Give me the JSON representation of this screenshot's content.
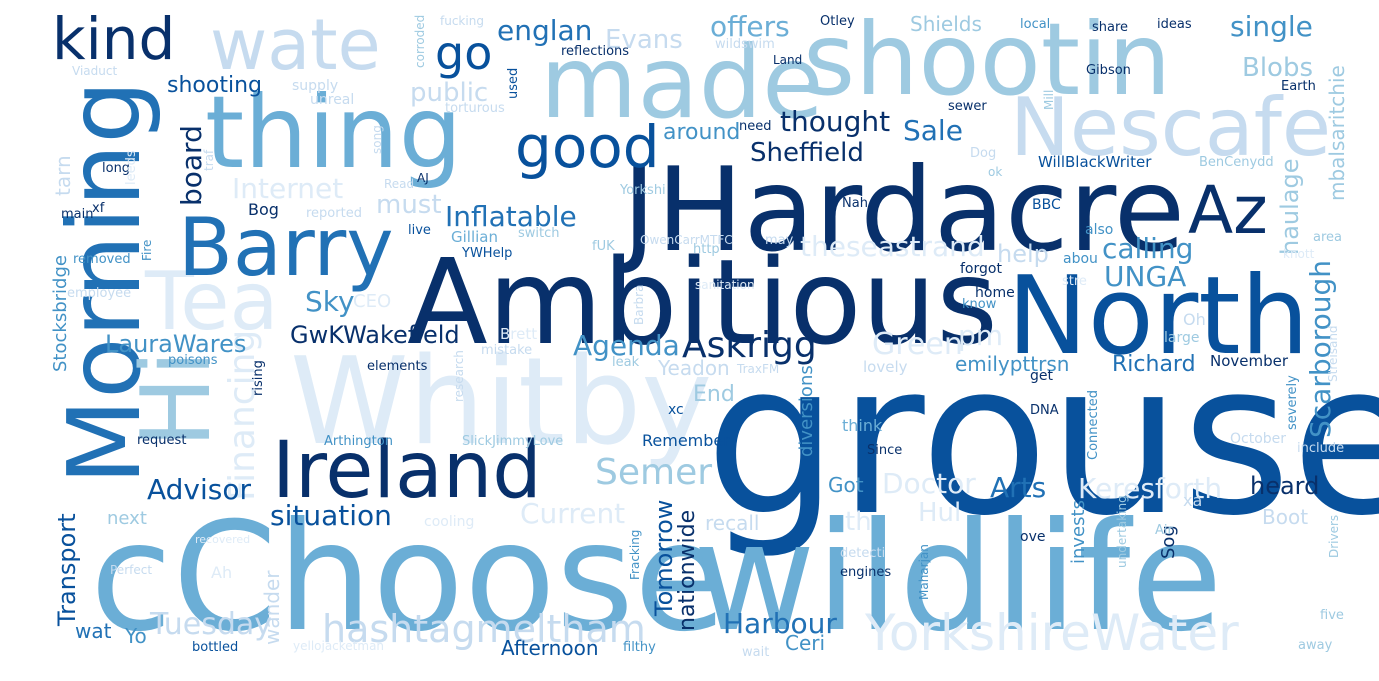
{
  "palette": {
    "c1": "#08306b",
    "c2": "#08519c",
    "c3": "#2171b5",
    "c4": "#4292c6",
    "c5": "#6baed6",
    "c6": "#9ecae1",
    "c7": "#c6dbef",
    "c8": "#deebf7"
  },
  "words": [
    {
      "text": "grouse",
      "size": 210,
      "color": "c2",
      "rot": 0
    },
    {
      "text": "cChoose",
      "size": 150,
      "color": "c5",
      "rot": 0
    },
    {
      "text": "wildlife",
      "size": 150,
      "color": "c5",
      "rot": 0
    },
    {
      "text": "Ambitious",
      "size": 118,
      "color": "c1",
      "rot": 0
    },
    {
      "text": "JHardacre",
      "size": 116,
      "color": "c1",
      "rot": 0
    },
    {
      "text": "Whitby",
      "size": 120,
      "color": "c8",
      "rot": 0
    },
    {
      "text": "North",
      "size": 108,
      "color": "c2",
      "rot": 0
    },
    {
      "text": "shootin",
      "size": 100,
      "color": "c6",
      "rot": 0
    },
    {
      "text": "made",
      "size": 100,
      "color": "c6",
      "rot": 0
    },
    {
      "text": "thing",
      "size": 100,
      "color": "c5",
      "rot": 0
    },
    {
      "text": "Morning",
      "size": 100,
      "color": "c3",
      "rot": -90
    },
    {
      "text": "Nescafe",
      "size": 80,
      "color": "c7",
      "rot": 0
    },
    {
      "text": "Hi",
      "size": 95,
      "color": "c6",
      "rot": -90
    },
    {
      "text": "Tea",
      "size": 80,
      "color": "c8",
      "rot": 0
    },
    {
      "text": "Barry",
      "size": 80,
      "color": "c3",
      "rot": 0
    },
    {
      "text": "Ireland",
      "size": 78,
      "color": "c1",
      "rot": 0
    },
    {
      "text": "wate",
      "size": 70,
      "color": "c7",
      "rot": 0
    },
    {
      "text": "Az",
      "size": 66,
      "color": "c1",
      "rot": 0
    },
    {
      "text": "good",
      "size": 58,
      "color": "c2",
      "rot": 0
    },
    {
      "text": "kind",
      "size": 58,
      "color": "c1",
      "rot": 0
    },
    {
      "text": "YorkshireWater",
      "size": 50,
      "color": "c8",
      "rot": 0
    },
    {
      "text": "go",
      "size": 46,
      "color": "c2",
      "rot": 0
    },
    {
      "text": "hashtagmeltham",
      "size": 38,
      "color": "c7",
      "rot": 0
    },
    {
      "text": "Askrigg",
      "size": 36,
      "color": "c1",
      "rot": 0
    },
    {
      "text": "Semer",
      "size": 36,
      "color": "c6",
      "rot": 0
    },
    {
      "text": "Financing",
      "size": 36,
      "color": "c8",
      "rot": -90
    },
    {
      "text": "Scarborough",
      "size": 28,
      "color": "c4",
      "rot": -90
    },
    {
      "text": "Green",
      "size": 30,
      "color": "c8",
      "rot": 0
    },
    {
      "text": "theseastrand",
      "size": 28,
      "color": "c8",
      "rot": 0
    },
    {
      "text": "Tuesday",
      "size": 30,
      "color": "c7",
      "rot": 0
    },
    {
      "text": "Sale",
      "size": 28,
      "color": "c3",
      "rot": 0
    },
    {
      "text": "Agenda",
      "size": 28,
      "color": "c4",
      "rot": 0
    },
    {
      "text": "Internet",
      "size": 28,
      "color": "c8",
      "rot": 0
    },
    {
      "text": "Harbour",
      "size": 28,
      "color": "c3",
      "rot": 0
    },
    {
      "text": "calling",
      "size": 28,
      "color": "c4",
      "rot": 0
    },
    {
      "text": "Current",
      "size": 28,
      "color": "c8",
      "rot": 0
    },
    {
      "text": "Doctor",
      "size": 28,
      "color": "c8",
      "rot": 0
    },
    {
      "text": "Keresforth",
      "size": 28,
      "color": "c8",
      "rot": 0
    },
    {
      "text": "englan",
      "size": 28,
      "color": "c3",
      "rot": 0
    },
    {
      "text": "Evans",
      "size": 26,
      "color": "c7",
      "rot": 0
    },
    {
      "text": "Blobs",
      "size": 26,
      "color": "c6",
      "rot": 0
    },
    {
      "text": "public",
      "size": 26,
      "color": "c7",
      "rot": 0
    },
    {
      "text": "Inflatable",
      "size": 28,
      "color": "c3",
      "rot": 0
    },
    {
      "text": "situation",
      "size": 28,
      "color": "c2",
      "rot": 0
    },
    {
      "text": "Advisor",
      "size": 28,
      "color": "c2",
      "rot": 0
    },
    {
      "text": "Arts",
      "size": 28,
      "color": "c3",
      "rot": 0
    },
    {
      "text": "thought",
      "size": 28,
      "color": "c1",
      "rot": 0
    },
    {
      "text": "offers",
      "size": 28,
      "color": "c5",
      "rot": 0
    },
    {
      "text": "single",
      "size": 28,
      "color": "c4",
      "rot": 0
    },
    {
      "text": "Sheffield",
      "size": 26,
      "color": "c1",
      "rot": 0
    },
    {
      "text": "board",
      "size": 28,
      "color": "c1",
      "rot": -90
    },
    {
      "text": "Sky",
      "size": 28,
      "color": "c4",
      "rot": 0
    },
    {
      "text": "pm",
      "size": 28,
      "color": "c8",
      "rot": 0
    },
    {
      "text": "UNGA",
      "size": 28,
      "color": "c4",
      "rot": 0
    },
    {
      "text": "heard",
      "size": 24,
      "color": "c1",
      "rot": 0
    },
    {
      "text": "must",
      "size": 26,
      "color": "c7",
      "rot": 0
    },
    {
      "text": "Hul",
      "size": 26,
      "color": "c8",
      "rot": 0
    },
    {
      "text": "Tomorrow",
      "size": 24,
      "color": "c2",
      "rot": -90
    },
    {
      "text": "haulage",
      "size": 24,
      "color": "c6",
      "rot": -90
    },
    {
      "text": "around",
      "size": 22,
      "color": "c4",
      "rot": 0
    },
    {
      "text": "GwKWakefield",
      "size": 24,
      "color": "c1",
      "rot": 0
    },
    {
      "text": "LauraWares",
      "size": 24,
      "color": "c4",
      "rot": 0
    },
    {
      "text": "Richard",
      "size": 22,
      "color": "c3",
      "rot": 0
    },
    {
      "text": "shooting",
      "size": 22,
      "color": "c2",
      "rot": 0
    },
    {
      "text": "help",
      "size": 24,
      "color": "c7",
      "rot": 0
    },
    {
      "text": "th",
      "size": 26,
      "color": "c8",
      "rot": 0
    },
    {
      "text": "Transport",
      "size": 24,
      "color": "c2",
      "rot": -90
    },
    {
      "text": "nationwide",
      "size": 22,
      "color": "c1",
      "rot": -90
    },
    {
      "text": "Yeadon",
      "size": 20,
      "color": "c7",
      "rot": 0
    },
    {
      "text": "mbalsaritchie",
      "size": 20,
      "color": "c6",
      "rot": -90
    },
    {
      "text": "emilypttrsn",
      "size": 20,
      "color": "c4",
      "rot": 0
    },
    {
      "text": "End",
      "size": 22,
      "color": "c6",
      "rot": 0
    },
    {
      "text": "Got",
      "size": 20,
      "color": "c4",
      "rot": 0
    },
    {
      "text": "Boot",
      "size": 20,
      "color": "c7",
      "rot": 0
    },
    {
      "text": "Shields",
      "size": 20,
      "color": "c6",
      "rot": 0
    },
    {
      "text": "Afternoon",
      "size": 20,
      "color": "c2",
      "rot": 0
    },
    {
      "text": "Ceri",
      "size": 20,
      "color": "c4",
      "rot": 0
    },
    {
      "text": "recall",
      "size": 20,
      "color": "c7",
      "rot": 0
    },
    {
      "text": "Yo",
      "size": 20,
      "color": "c4",
      "rot": 0
    },
    {
      "text": "wat",
      "size": 20,
      "color": "c3",
      "rot": 0
    },
    {
      "text": "next",
      "size": 18,
      "color": "c6",
      "rot": 0
    },
    {
      "text": "wander",
      "size": 20,
      "color": "c7",
      "rot": -90
    },
    {
      "text": "CEO",
      "size": 18,
      "color": "c8",
      "rot": 0
    },
    {
      "text": "diversions",
      "size": 18,
      "color": "c4",
      "rot": -90
    },
    {
      "text": "Stocksbridge",
      "size": 18,
      "color": "c4",
      "rot": -90
    },
    {
      "text": "tarn",
      "size": 20,
      "color": "c7",
      "rot": -90
    },
    {
      "text": "Sog",
      "size": 18,
      "color": "c1",
      "rot": -90
    },
    {
      "text": "invests",
      "size": 18,
      "color": "c4",
      "rot": -90
    },
    {
      "text": "Bog",
      "size": 16,
      "color": "c1",
      "rot": 0
    },
    {
      "text": "think",
      "size": 16,
      "color": "c5",
      "rot": 0
    },
    {
      "text": "Remember",
      "size": 16,
      "color": "c2",
      "rot": 0
    },
    {
      "text": "November",
      "size": 15,
      "color": "c1",
      "rot": 0
    },
    {
      "text": "WillBlackWriter",
      "size": 15,
      "color": "c2",
      "rot": 0
    },
    {
      "text": "Gillian",
      "size": 15,
      "color": "c5",
      "rot": 0
    },
    {
      "text": "Ah",
      "size": 16,
      "color": "c8",
      "rot": 0
    },
    {
      "text": "xc",
      "size": 14,
      "color": "c2",
      "rot": 0
    },
    {
      "text": "Oh",
      "size": 16,
      "color": "c7",
      "rot": 0
    },
    {
      "text": "ove",
      "size": 14,
      "color": "c1",
      "rot": 0
    },
    {
      "text": "lovely",
      "size": 15,
      "color": "c7",
      "rot": 0
    },
    {
      "text": "get",
      "size": 14,
      "color": "c1",
      "rot": 0
    },
    {
      "text": "xa",
      "size": 16,
      "color": "c7",
      "rot": 0
    },
    {
      "text": "Since",
      "size": 13,
      "color": "c1",
      "rot": 0
    },
    {
      "text": "mistake",
      "size": 13,
      "color": "c7",
      "rot": 0
    },
    {
      "text": "elements",
      "size": 13,
      "color": "c1",
      "rot": 0
    },
    {
      "text": "Arthington",
      "size": 13,
      "color": "c4",
      "rot": 0
    },
    {
      "text": "SlickJimmyLove",
      "size": 13,
      "color": "c6",
      "rot": 0
    },
    {
      "text": "poisons",
      "size": 13,
      "color": "c4",
      "rot": 0
    },
    {
      "text": "request",
      "size": 13,
      "color": "c1",
      "rot": 0
    },
    {
      "text": "rising",
      "size": 13,
      "color": "c1",
      "rot": -90
    },
    {
      "text": "research",
      "size": 12,
      "color": "c7",
      "rot": -90
    },
    {
      "text": "Brett",
      "size": 15,
      "color": "c8",
      "rot": 0
    },
    {
      "text": "leak",
      "size": 13,
      "color": "c6",
      "rot": 0
    },
    {
      "text": "TraxFM",
      "size": 12,
      "color": "c7",
      "rot": 0
    },
    {
      "text": "Connected",
      "size": 13,
      "color": "c4",
      "rot": -90
    },
    {
      "text": "severely",
      "size": 13,
      "color": "c4",
      "rot": -90
    },
    {
      "text": "Streisand",
      "size": 12,
      "color": "c7",
      "rot": -90
    },
    {
      "text": "include",
      "size": 13,
      "color": "c7",
      "rot": 0
    },
    {
      "text": "October",
      "size": 14,
      "color": "c7",
      "rot": 0
    },
    {
      "text": "DNA",
      "size": 13,
      "color": "c1",
      "rot": 0
    },
    {
      "text": "large",
      "size": 14,
      "color": "c6",
      "rot": 0
    },
    {
      "text": "home",
      "size": 14,
      "color": "c1",
      "rot": 0
    },
    {
      "text": "know",
      "size": 13,
      "color": "c4",
      "rot": 0
    },
    {
      "text": "forgot",
      "size": 14,
      "color": "c1",
      "rot": 0
    },
    {
      "text": "abou",
      "size": 14,
      "color": "c4",
      "rot": 0
    },
    {
      "text": "stre",
      "size": 13,
      "color": "c8",
      "rot": 0
    },
    {
      "text": "area",
      "size": 13,
      "color": "c6",
      "rot": 0
    },
    {
      "text": "knott",
      "size": 12,
      "color": "c8",
      "rot": 0
    },
    {
      "text": "also",
      "size": 14,
      "color": "c4",
      "rot": 0
    },
    {
      "text": "BBC",
      "size": 14,
      "color": "c2",
      "rot": 0
    },
    {
      "text": "Nah",
      "size": 13,
      "color": "c1",
      "rot": 0
    },
    {
      "text": "may",
      "size": 13,
      "color": "c7",
      "rot": 0
    },
    {
      "text": "http",
      "size": 13,
      "color": "c6",
      "rot": 0
    },
    {
      "text": "fUK",
      "size": 13,
      "color": "c6",
      "rot": 0
    },
    {
      "text": "YWHelp",
      "size": 13,
      "color": "c2",
      "rot": 0
    },
    {
      "text": "switch",
      "size": 13,
      "color": "c6",
      "rot": 0
    },
    {
      "text": "OwenCarrMTFC",
      "size": 12,
      "color": "c7",
      "rot": 0
    },
    {
      "text": "Barbra",
      "size": 12,
      "color": "c7",
      "rot": -90
    },
    {
      "text": "sanitation",
      "size": 12,
      "color": "c8",
      "rot": 0
    },
    {
      "text": "Yorkshi",
      "size": 13,
      "color": "c6",
      "rot": 0
    },
    {
      "text": "live",
      "size": 13,
      "color": "c2",
      "rot": 0
    },
    {
      "text": "reported",
      "size": 13,
      "color": "c7",
      "rot": 0
    },
    {
      "text": "main",
      "size": 13,
      "color": "c1",
      "rot": 0
    },
    {
      "text": "xf",
      "size": 13,
      "color": "c1",
      "rot": 0
    },
    {
      "text": "removed",
      "size": 13,
      "color": "c4",
      "rot": 0
    },
    {
      "text": "employee",
      "size": 13,
      "color": "c7",
      "rot": 0
    },
    {
      "text": "Fire",
      "size": 12,
      "color": "c4",
      "rot": -90
    },
    {
      "text": "long",
      "size": 13,
      "color": "c1",
      "rot": 0
    },
    {
      "text": "leeds",
      "size": 13,
      "color": "c8",
      "rot": -90
    },
    {
      "text": "traf",
      "size": 12,
      "color": "c7",
      "rot": -90
    },
    {
      "text": "AJ",
      "size": 12,
      "color": "c1",
      "rot": 0
    },
    {
      "text": "Read",
      "size": 12,
      "color": "c7",
      "rot": 0
    },
    {
      "text": "song",
      "size": 12,
      "color": "c7",
      "rot": -90
    },
    {
      "text": "unreal",
      "size": 14,
      "color": "c7",
      "rot": 0
    },
    {
      "text": "supply",
      "size": 14,
      "color": "c7",
      "rot": 0
    },
    {
      "text": "torturous",
      "size": 13,
      "color": "c7",
      "rot": 0
    },
    {
      "text": "used",
      "size": 13,
      "color": "c2",
      "rot": -90
    },
    {
      "text": "corroded",
      "size": 12,
      "color": "c6",
      "rot": -90
    },
    {
      "text": "fucking",
      "size": 12,
      "color": "c7",
      "rot": 0
    },
    {
      "text": "reflections",
      "size": 13,
      "color": "c1",
      "rot": 0
    },
    {
      "text": "Viaduct",
      "size": 12,
      "color": "c7",
      "rot": 0
    },
    {
      "text": "wildswim",
      "size": 13,
      "color": "c7",
      "rot": 0
    },
    {
      "text": "Land",
      "size": 12,
      "color": "c1",
      "rot": 0
    },
    {
      "text": "Otley",
      "size": 13,
      "color": "c1",
      "rot": 0
    },
    {
      "text": "local",
      "size": 13,
      "color": "c4",
      "rot": 0
    },
    {
      "text": "share",
      "size": 13,
      "color": "c1",
      "rot": 0
    },
    {
      "text": "ideas",
      "size": 13,
      "color": "c1",
      "rot": 0
    },
    {
      "text": "Gibson",
      "size": 13,
      "color": "c1",
      "rot": 0
    },
    {
      "text": "Earth",
      "size": 13,
      "color": "c1",
      "rot": 0
    },
    {
      "text": "Mill",
      "size": 12,
      "color": "c6",
      "rot": -90
    },
    {
      "text": "sewer",
      "size": 13,
      "color": "c1",
      "rot": 0
    },
    {
      "text": "need",
      "size": 13,
      "color": "c1",
      "rot": 0
    },
    {
      "text": "Dog",
      "size": 13,
      "color": "c7",
      "rot": 0
    },
    {
      "text": "ok",
      "size": 12,
      "color": "c6",
      "rot": 0
    },
    {
      "text": "BenCenydd",
      "size": 13,
      "color": "c6",
      "rot": 0
    },
    {
      "text": "Air",
      "size": 13,
      "color": "c6",
      "rot": 0
    },
    {
      "text": "Drivers",
      "size": 12,
      "color": "c6",
      "rot": -90
    },
    {
      "text": "five",
      "size": 13,
      "color": "c6",
      "rot": 0
    },
    {
      "text": "away",
      "size": 13,
      "color": "c6",
      "rot": 0
    },
    {
      "text": "undertaking",
      "size": 12,
      "color": "c6",
      "rot": -90
    },
    {
      "text": "engines",
      "size": 13,
      "color": "c1",
      "rot": 0
    },
    {
      "text": "detecti",
      "size": 13,
      "color": "c7",
      "rot": 0
    },
    {
      "text": "Maharjan",
      "size": 12,
      "color": "c4",
      "rot": -90
    },
    {
      "text": "Fracking",
      "size": 12,
      "color": "c4",
      "rot": -90
    },
    {
      "text": "cooling",
      "size": 14,
      "color": "c8",
      "rot": 0
    },
    {
      "text": "bottled",
      "size": 13,
      "color": "c2",
      "rot": 0
    },
    {
      "text": "yellojacketman",
      "size": 12,
      "color": "c8",
      "rot": 0
    },
    {
      "text": "filthy",
      "size": 13,
      "color": "c4",
      "rot": 0
    },
    {
      "text": "wait",
      "size": 13,
      "color": "c7",
      "rot": 0
    },
    {
      "text": "Perfect",
      "size": 12,
      "color": "c7",
      "rot": 0
    },
    {
      "text": "recovered",
      "size": 11,
      "color": "c8",
      "rot": 0
    }
  ]
}
